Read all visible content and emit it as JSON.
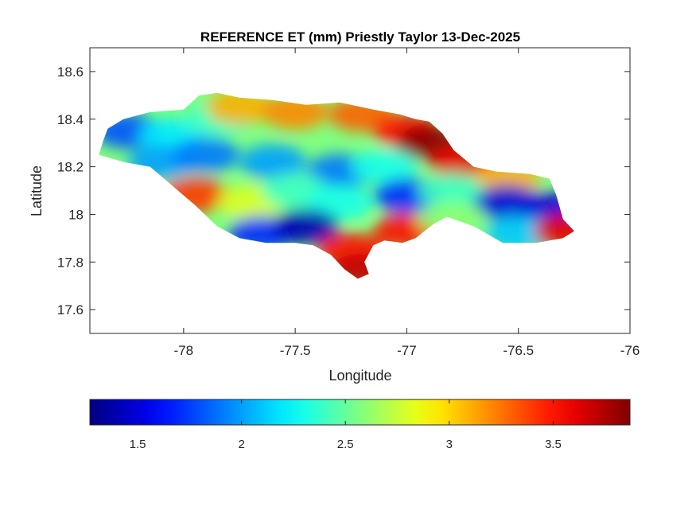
{
  "chart_data": [
    {
      "type": "heatmap",
      "title": "REFERENCE ET (mm) Priestly Taylor 13-Dec-2025",
      "xlabel": "Longitude",
      "ylabel": "Latitude",
      "xlim": [
        -78.42,
        -76.0
      ],
      "ylim": [
        17.5,
        18.7
      ],
      "xticks": [
        -78,
        -77.5,
        -77,
        -76.5,
        -76
      ],
      "yticks": [
        17.6,
        17.8,
        18,
        18.2,
        18.4,
        18.6
      ],
      "x_tick_labels": [
        "-78",
        "-77.5",
        "-77",
        "-76.5",
        "-76"
      ],
      "y_tick_labels": [
        "17.6",
        "17.8",
        "18",
        "18.2",
        "18.4",
        "18.6"
      ],
      "grid": false,
      "colormap": "jet",
      "region_outline": [
        [
          -78.34,
          18.36
        ],
        [
          -78.27,
          18.4
        ],
        [
          -78.15,
          18.43
        ],
        [
          -78.0,
          18.44
        ],
        [
          -77.93,
          18.5
        ],
        [
          -77.85,
          18.51
        ],
        [
          -77.75,
          18.49
        ],
        [
          -77.6,
          18.48
        ],
        [
          -77.45,
          18.46
        ],
        [
          -77.3,
          18.47
        ],
        [
          -77.15,
          18.44
        ],
        [
          -77.03,
          18.42
        ],
        [
          -76.96,
          18.4
        ],
        [
          -76.9,
          18.39
        ],
        [
          -76.84,
          18.34
        ],
        [
          -76.79,
          18.27
        ],
        [
          -76.7,
          18.2
        ],
        [
          -76.6,
          18.18
        ],
        [
          -76.45,
          18.17
        ],
        [
          -76.36,
          18.15
        ],
        [
          -76.33,
          18.08
        ],
        [
          -76.3,
          17.98
        ],
        [
          -76.25,
          17.93
        ],
        [
          -76.3,
          17.9
        ],
        [
          -76.42,
          17.88
        ],
        [
          -76.57,
          17.88
        ],
        [
          -76.7,
          17.95
        ],
        [
          -76.82,
          17.99
        ],
        [
          -76.88,
          17.96
        ],
        [
          -76.96,
          17.9
        ],
        [
          -77.02,
          17.88
        ],
        [
          -77.1,
          17.89
        ],
        [
          -77.15,
          17.87
        ],
        [
          -77.19,
          17.8
        ],
        [
          -77.17,
          17.75
        ],
        [
          -77.22,
          17.73
        ],
        [
          -77.28,
          17.77
        ],
        [
          -77.34,
          17.83
        ],
        [
          -77.42,
          17.87
        ],
        [
          -77.5,
          17.88
        ],
        [
          -77.63,
          17.88
        ],
        [
          -77.75,
          17.9
        ],
        [
          -77.85,
          17.95
        ],
        [
          -77.95,
          18.04
        ],
        [
          -78.05,
          18.12
        ],
        [
          -78.15,
          18.2
        ],
        [
          -78.27,
          18.22
        ],
        [
          -78.38,
          18.25
        ],
        [
          -78.36,
          18.31
        ]
      ],
      "value_blobs": [
        {
          "lon": -78.25,
          "lat": 18.35,
          "value": 1.8
        },
        {
          "lon": -78.05,
          "lat": 18.33,
          "value": 2.2
        },
        {
          "lon": -77.85,
          "lat": 18.4,
          "value": 2.4
        },
        {
          "lon": -77.75,
          "lat": 18.45,
          "value": 3.1
        },
        {
          "lon": -77.5,
          "lat": 18.43,
          "value": 3.2
        },
        {
          "lon": -77.2,
          "lat": 18.42,
          "value": 3.3
        },
        {
          "lon": -77.0,
          "lat": 18.35,
          "value": 3.5
        },
        {
          "lon": -76.9,
          "lat": 18.3,
          "value": 3.85
        },
        {
          "lon": -76.75,
          "lat": 18.22,
          "value": 3.6
        },
        {
          "lon": -76.55,
          "lat": 18.15,
          "value": 3.1
        },
        {
          "lon": -78.1,
          "lat": 18.22,
          "value": 2.0
        },
        {
          "lon": -77.9,
          "lat": 18.25,
          "value": 1.9
        },
        {
          "lon": -77.6,
          "lat": 18.22,
          "value": 2.0
        },
        {
          "lon": -77.3,
          "lat": 18.18,
          "value": 1.9
        },
        {
          "lon": -77.1,
          "lat": 18.2,
          "value": 2.3
        },
        {
          "lon": -77.95,
          "lat": 18.08,
          "value": 3.4
        },
        {
          "lon": -77.7,
          "lat": 18.05,
          "value": 2.8
        },
        {
          "lon": -77.5,
          "lat": 18.1,
          "value": 2.4
        },
        {
          "lon": -77.3,
          "lat": 18.05,
          "value": 2.3
        },
        {
          "lon": -77.0,
          "lat": 18.08,
          "value": 1.7
        },
        {
          "lon": -76.8,
          "lat": 18.1,
          "value": 2.4
        },
        {
          "lon": -76.55,
          "lat": 18.05,
          "value": 1.5
        },
        {
          "lon": -76.35,
          "lat": 18.02,
          "value": 1.5
        },
        {
          "lon": -77.65,
          "lat": 17.92,
          "value": 1.7
        },
        {
          "lon": -77.45,
          "lat": 17.95,
          "value": 1.4
        },
        {
          "lon": -77.25,
          "lat": 17.85,
          "value": 3.5
        },
        {
          "lon": -77.2,
          "lat": 17.76,
          "value": 3.7
        },
        {
          "lon": -77.0,
          "lat": 17.93,
          "value": 3.5
        },
        {
          "lon": -76.8,
          "lat": 17.98,
          "value": 2.6
        },
        {
          "lon": -76.5,
          "lat": 17.92,
          "value": 2.1
        },
        {
          "lon": -76.28,
          "lat": 17.93,
          "value": 3.6
        }
      ]
    },
    {
      "type": "colorbar",
      "colormap": "jet",
      "range": [
        1.27,
        3.87
      ],
      "ticks": [
        1.5,
        2,
        2.5,
        3,
        3.5
      ],
      "tick_labels": [
        "1.5",
        "2",
        "2.5",
        "3",
        "3.5"
      ]
    }
  ]
}
